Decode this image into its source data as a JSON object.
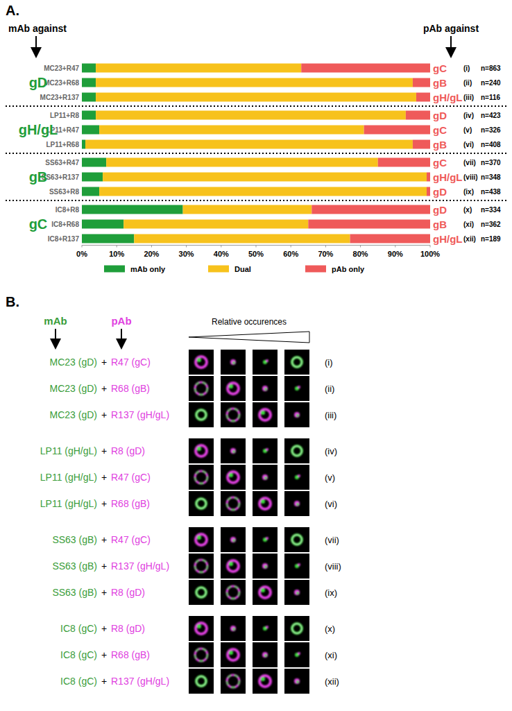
{
  "chart_data": {
    "type": "bar",
    "orientation": "horizontal",
    "stacked": true,
    "panel_label": "A.",
    "left_header": "mAb against",
    "right_header": "pAb against",
    "categories": [
      "MC23+R47",
      "MC23+R68",
      "MC23+R137",
      "LP11+R8",
      "LP11+R47",
      "LP11+R68",
      "SS63+R47",
      "SS63+R137",
      "SS63+R8",
      "IC8+R8",
      "IC8+R68",
      "IC8+R137"
    ],
    "mab_groups": [
      "gD",
      "gH/gL",
      "gB",
      "gC"
    ],
    "pab_targets": [
      "gC",
      "gB",
      "gH/gL",
      "gD",
      "gC",
      "gB",
      "gC",
      "gH/gL",
      "gD",
      "gD",
      "gB",
      "gH/gL"
    ],
    "row_ids": [
      "(i)",
      "(ii)",
      "(iii)",
      "(iv)",
      "(v)",
      "(vi)",
      "(vii)",
      "(viii)",
      "(ix)",
      "(x)",
      "(xi)",
      "(xii)"
    ],
    "row_n": [
      "n=863",
      "n=240",
      "n=116",
      "n=423",
      "n=326",
      "n=408",
      "n=370",
      "n=348",
      "n=438",
      "n=334",
      "n=362",
      "n=189"
    ],
    "series": [
      {
        "name": "mAb only",
        "color": "#1f9e3a",
        "values": [
          4,
          4,
          4,
          4,
          5,
          1,
          7,
          6,
          5,
          29,
          12,
          15
        ]
      },
      {
        "name": "Dual",
        "color": "#f7c21c",
        "values": [
          59,
          91,
          92,
          89,
          76,
          94,
          78,
          93,
          94,
          37,
          53,
          62
        ]
      },
      {
        "name": "pAb only",
        "color": "#ef5a5a",
        "values": [
          37,
          5,
          4,
          7,
          19,
          5,
          15,
          1,
          1,
          34,
          35,
          23
        ]
      }
    ],
    "xlim": [
      0,
      100
    ],
    "xticks": [
      {
        "value": 0,
        "label": "0%"
      },
      {
        "value": 10,
        "label": "10%"
      },
      {
        "value": 20,
        "label": "20%"
      },
      {
        "value": 30,
        "label": "30%"
      },
      {
        "value": 40,
        "label": "40%"
      },
      {
        "value": 50,
        "label": "50%"
      },
      {
        "value": 60,
        "label": "60%"
      },
      {
        "value": 70,
        "label": "70%"
      },
      {
        "value": 80,
        "label": "80%"
      },
      {
        "value": 90,
        "label": "90%"
      },
      {
        "value": 100,
        "label": "100%"
      }
    ],
    "legend": "bottom",
    "grid": false
  },
  "panel_b": {
    "label": "B.",
    "mab_header": "mAb",
    "pab_header": "pAb",
    "gradient_label": "Relative occurences",
    "joiner": "+",
    "rows": [
      {
        "mab": "MC23 (gD)",
        "pab": "R47 (gC)",
        "id": "(i)"
      },
      {
        "mab": "MC23 (gD)",
        "pab": "R68 (gB)",
        "id": "(ii)"
      },
      {
        "mab": "MC23 (gD)",
        "pab": "R137 (gH/gL)",
        "id": "(iii)"
      },
      {
        "mab": "LP11 (gH/gL)",
        "pab": "R8 (gD)",
        "id": "(iv)"
      },
      {
        "mab": "LP11 (gH/gL)",
        "pab": "R47 (gC)",
        "id": "(v)"
      },
      {
        "mab": "LP11 (gH/gL)",
        "pab": "R68 (gB)",
        "id": "(vi)"
      },
      {
        "mab": "SS63 (gB)",
        "pab": "R47 (gC)",
        "id": "(vii)"
      },
      {
        "mab": "SS63 (gB)",
        "pab": "R137 (gH/gL)",
        "id": "(viii)"
      },
      {
        "mab": "SS63 (gB)",
        "pab": "R8 (gD)",
        "id": "(ix)"
      },
      {
        "mab": "IC8 (gC)",
        "pab": "R8 (gD)",
        "id": "(x)"
      },
      {
        "mab": "IC8 (gC)",
        "pab": "R68 (gB)",
        "id": "(xi)"
      },
      {
        "mab": "IC8 (gC)",
        "pab": "R137 (gH/gL)",
        "id": "(xii)"
      }
    ]
  }
}
